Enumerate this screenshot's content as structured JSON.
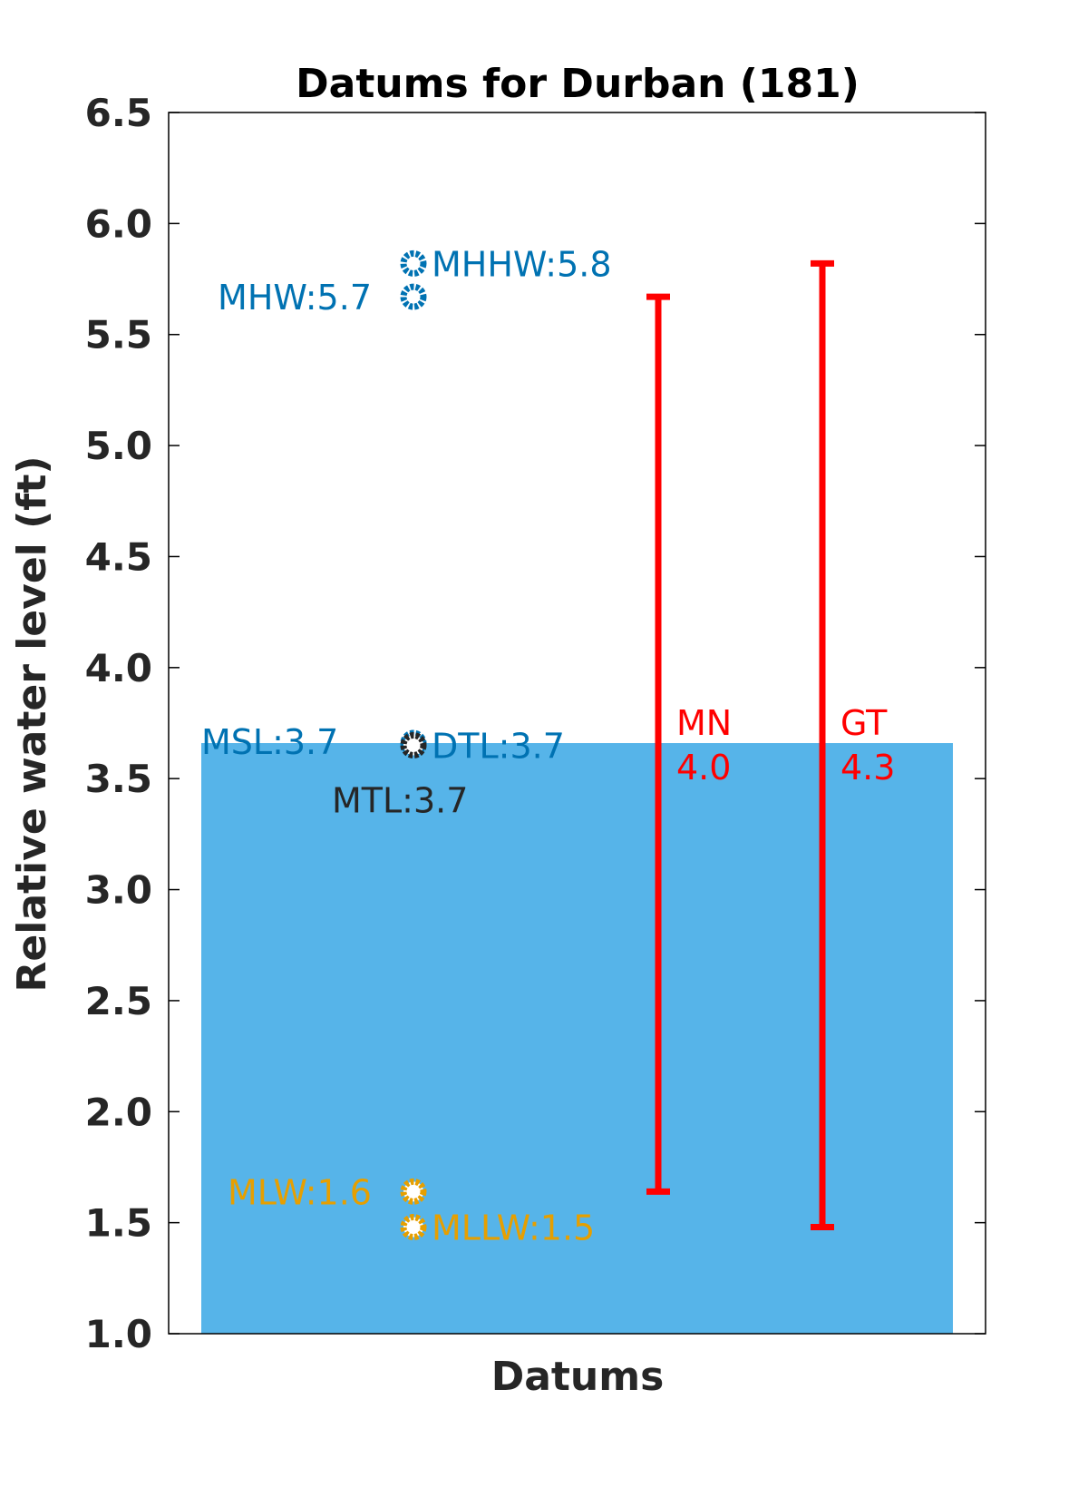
{
  "chart_data": {
    "type": "scatter",
    "title": "Datums for Durban (181)",
    "xlabel": "Datums",
    "ylabel": "Relative water level (ft)",
    "ylim": [
      1.0,
      6.5
    ],
    "yticks": [
      "1.0",
      "1.5",
      "2.0",
      "2.5",
      "3.0",
      "3.5",
      "4.0",
      "4.5",
      "5.0",
      "5.5",
      "6.0",
      "6.5"
    ],
    "grid": false,
    "msl_fill": {
      "value": 3.66,
      "color": "#56B4E9"
    },
    "datums": [
      {
        "name": "MHHW",
        "label": "MHHW:5.8",
        "value": 5.82,
        "color": "#0072B2",
        "side": "right"
      },
      {
        "name": "MHW",
        "label": "MHW:5.7",
        "value": 5.67,
        "color": "#0072B2",
        "side": "left"
      },
      {
        "name": "MSL",
        "label": "MSL:3.7",
        "value": 3.66,
        "color": "#0072B2",
        "side": "far-left"
      },
      {
        "name": "DTL",
        "label": "DTL:3.7",
        "value": 3.65,
        "color": "#0072B2",
        "side": "right"
      },
      {
        "name": "MTL",
        "label": "MTL:3.7",
        "value": 3.65,
        "color": "#262626",
        "side": "below"
      },
      {
        "name": "MLW",
        "label": "MLW:1.6",
        "value": 1.64,
        "color": "#E69F00",
        "side": "left"
      },
      {
        "name": "MLLW",
        "label": "MLLW:1.5",
        "value": 1.48,
        "color": "#E69F00",
        "side": "right"
      }
    ],
    "ranges": [
      {
        "name": "MN",
        "label": "MN",
        "value_label": "4.0",
        "low": 1.64,
        "high": 5.67,
        "color": "#FF0000"
      },
      {
        "name": "GT",
        "label": "GT",
        "value_label": "4.3",
        "low": 1.48,
        "high": 5.82,
        "color": "#FF0000"
      }
    ]
  }
}
